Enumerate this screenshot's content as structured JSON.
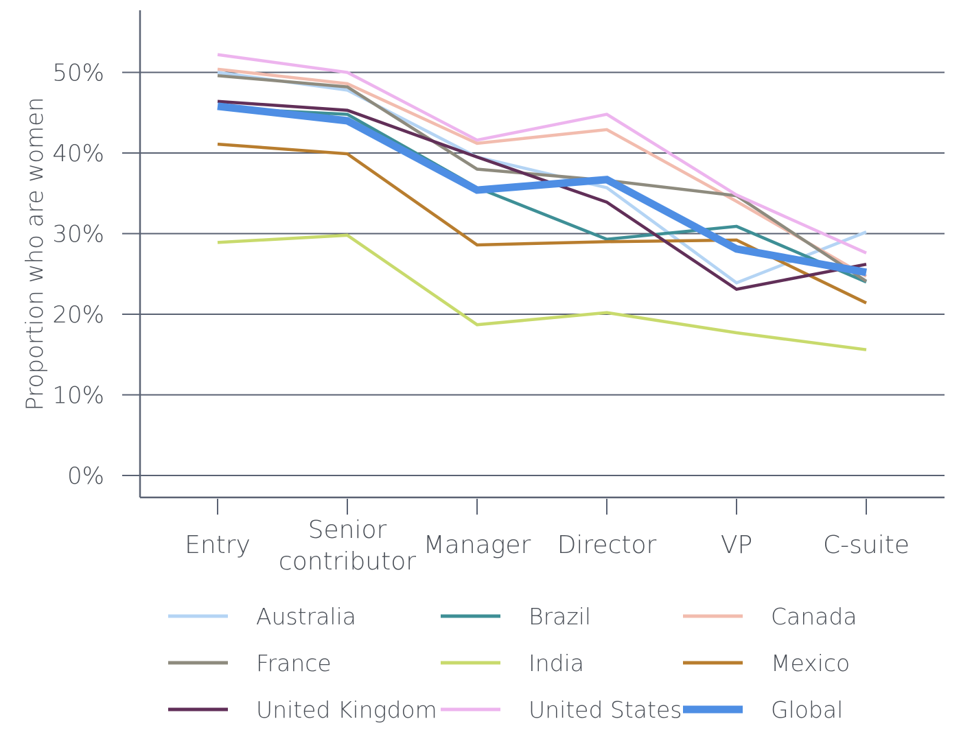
{
  "chart_data": {
    "type": "line",
    "title": "",
    "xlabel": "",
    "ylabel": "Proportion who are women",
    "categories": [
      [
        "Entry"
      ],
      [
        "Senior",
        "contributor"
      ],
      [
        "Manager"
      ],
      [
        "Director"
      ],
      [
        "VP"
      ],
      [
        "C-suite"
      ]
    ],
    "ylim": [
      0,
      0.52
    ],
    "yticks": [
      {
        "value": 0.0,
        "label": "0%"
      },
      {
        "value": 0.1,
        "label": "10%"
      },
      {
        "value": 0.2,
        "label": "20%"
      },
      {
        "value": 0.3,
        "label": "30%"
      },
      {
        "value": 0.4,
        "label": "40%"
      },
      {
        "value": 0.5,
        "label": "50%"
      }
    ],
    "grid": true,
    "legend_position": "bottom",
    "series": [
      {
        "name": "Australia",
        "color": "#b4d4f4",
        "values": [
          0.5,
          0.478,
          0.395,
          0.357,
          0.239,
          0.302
        ]
      },
      {
        "name": "Brazil",
        "color": "#3e8f96",
        "values": [
          0.456,
          0.448,
          0.357,
          0.293,
          0.309,
          0.24
        ]
      },
      {
        "name": "Canada",
        "color": "#f2bcae",
        "values": [
          0.504,
          0.486,
          0.412,
          0.429,
          0.34,
          0.247
        ]
      },
      {
        "name": "France",
        "color": "#8e8b7e",
        "values": [
          0.496,
          0.482,
          0.38,
          0.366,
          0.347,
          0.241
        ]
      },
      {
        "name": "India",
        "color": "#c8da6c",
        "values": [
          0.289,
          0.298,
          0.187,
          0.202,
          0.177,
          0.156
        ]
      },
      {
        "name": "Mexico",
        "color": "#b87d2e",
        "values": [
          0.411,
          0.399,
          0.286,
          0.29,
          0.292,
          0.214
        ]
      },
      {
        "name": "United Kingdom",
        "color": "#612f58",
        "values": [
          0.464,
          0.453,
          0.395,
          0.339,
          0.231,
          0.262
        ]
      },
      {
        "name": "United States",
        "color": "#edb4ee",
        "values": [
          0.522,
          0.5,
          0.416,
          0.448,
          0.348,
          0.276
        ]
      },
      {
        "name": "Global",
        "color": "#4e8ee4",
        "values": [
          0.458,
          0.44,
          0.354,
          0.367,
          0.281,
          0.252
        ]
      }
    ]
  }
}
